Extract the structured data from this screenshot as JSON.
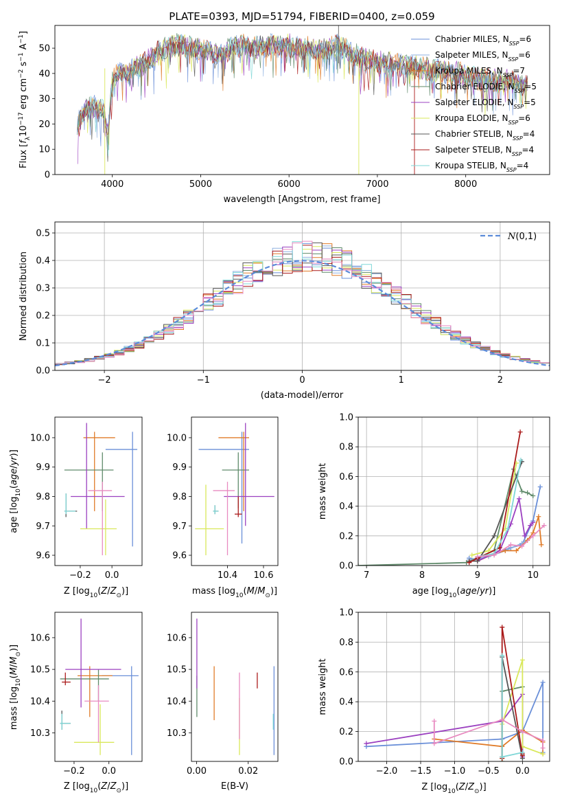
{
  "figure_title": "PLATE=0393, MJD=51794, FIBERID=0400, z=0.059",
  "colors": {
    "Chabrier MILES": "#6a8fd8",
    "Salpeter MILES": "#8fb1e0",
    "Kroupa MILES": "#e07b28",
    "Chabrier ELODIE": "#5f8a6a",
    "Salpeter ELODIE": "#9b40c0",
    "Kroupa ELODIE": "#d9e85a",
    "Chabrier STELIB": "#555555",
    "Salpeter STELIB": "#aa1a1a",
    "Kroupa STELIB": "#7fd7d7",
    "extra_pink": "#e88ac0",
    "gauss": "#5b8bd9"
  },
  "chart_data": [
    {
      "id": "spectrum",
      "type": "line",
      "title": "PLATE=0393, MJD=51794, FIBERID=0400, z=0.059",
      "xlabel": "wavelength [Angstrom, rest frame]",
      "ylabel": "Flux [f_λ 10^-17 erg cm^-2 s^-1 A^-1]",
      "xlim": [
        3350,
        8950
      ],
      "ylim": [
        0,
        59
      ],
      "xticks": [
        4000,
        5000,
        6000,
        7000,
        8000
      ],
      "yticks": [
        0,
        10,
        20,
        30,
        40,
        50
      ],
      "legend_position": "upper right",
      "anchors": [
        [
          3600,
          20
        ],
        [
          3700,
          26
        ],
        [
          3800,
          27
        ],
        [
          3900,
          25
        ],
        [
          3950,
          16
        ],
        [
          4000,
          38
        ],
        [
          4100,
          40
        ],
        [
          4200,
          41
        ],
        [
          4300,
          43
        ],
        [
          4400,
          45
        ],
        [
          4500,
          48
        ],
        [
          4600,
          50
        ],
        [
          4700,
          51
        ],
        [
          4800,
          51
        ],
        [
          4900,
          50
        ],
        [
          5000,
          49
        ],
        [
          5100,
          49
        ],
        [
          5200,
          47
        ],
        [
          5300,
          49
        ],
        [
          5400,
          51
        ],
        [
          5500,
          51
        ],
        [
          5600,
          50
        ],
        [
          5800,
          51
        ],
        [
          6000,
          51
        ],
        [
          6200,
          50
        ],
        [
          6400,
          49
        ],
        [
          6563,
          51
        ],
        [
          6700,
          48
        ],
        [
          6900,
          45
        ],
        [
          7100,
          44
        ],
        [
          7300,
          43
        ],
        [
          7500,
          42
        ],
        [
          7700,
          41
        ],
        [
          7900,
          40
        ],
        [
          8100,
          38
        ],
        [
          8300,
          37
        ],
        [
          8500,
          37
        ],
        [
          8700,
          35
        ]
      ],
      "series": [
        {
          "name": "Chabrier MILES",
          "n_ssp": "6"
        },
        {
          "name": "Salpeter MILES",
          "n_ssp": "6"
        },
        {
          "name": "Kroupa MILES",
          "n_ssp": "7"
        },
        {
          "name": "Chabrier ELODIE",
          "n_ssp": "5"
        },
        {
          "name": "Salpeter ELODIE",
          "n_ssp": "5"
        },
        {
          "name": "Kroupa ELODIE",
          "n_ssp": "6"
        },
        {
          "name": "Chabrier STELIB",
          "n_ssp": "4"
        },
        {
          "name": "Salpeter STELIB",
          "n_ssp": "4"
        },
        {
          "name": "Kroupa STELIB",
          "n_ssp": "4"
        }
      ]
    },
    {
      "id": "residuals",
      "type": "line",
      "xlabel": "(data-model)/error",
      "ylabel": "Normed distribution",
      "xlim": [
        -2.5,
        2.5
      ],
      "ylim": [
        0,
        0.54
      ],
      "xticks": [
        -2,
        -1,
        0,
        1,
        2
      ],
      "yticks": [
        0.0,
        0.1,
        0.2,
        0.3,
        0.4,
        0.5
      ],
      "grid": true,
      "legend_position": "upper right",
      "gaussian_label": "N(0,1)",
      "bin_width": 0.1
    },
    {
      "id": "age_vs_Z",
      "type": "scatter",
      "xlabel": "Z [log10(Z/Z⊙)]",
      "ylabel": "age [log10(age/yr)]",
      "xlim": [
        -0.36,
        0.19
      ],
      "ylim": [
        9.565,
        10.07
      ],
      "xticks": [
        -0.2,
        0.0
      ],
      "yticks": [
        9.6,
        9.7,
        9.8,
        9.9,
        10.0
      ],
      "points": [
        {
          "series": "Chabrier MILES",
          "x": 0.13,
          "y": 9.96,
          "xlo": -0.04,
          "xhi": 0.16,
          "ylo": 9.63,
          "yhi": 10.02
        },
        {
          "series": "Kroupa MILES",
          "x": -0.11,
          "y": 10.0,
          "xlo": -0.18,
          "xhi": 0.02,
          "ylo": 9.75,
          "yhi": 10.02
        },
        {
          "series": "Chabrier ELODIE",
          "x": -0.06,
          "y": 9.89,
          "xlo": -0.3,
          "xhi": 0.01,
          "ylo": 9.75,
          "yhi": 9.95
        },
        {
          "series": "Salpeter ELODIE",
          "x": -0.16,
          "y": 9.8,
          "xlo": -0.26,
          "xhi": 0.08,
          "ylo": 9.69,
          "yhi": 10.05
        },
        {
          "series": "Kroupa ELODIE",
          "x": -0.04,
          "y": 9.69,
          "xlo": -0.2,
          "xhi": 0.03,
          "ylo": 9.6,
          "yhi": 9.79
        },
        {
          "series": "Chabrier STELIB",
          "x": -0.29,
          "y": 9.75,
          "xlo": -0.3,
          "xhi": -0.22,
          "ylo": 9.73,
          "yhi": 9.81
        },
        {
          "series": "Kroupa STELIB",
          "x": -0.29,
          "y": 9.75,
          "xlo": -0.3,
          "xhi": -0.23,
          "ylo": 9.74,
          "yhi": 9.81
        },
        {
          "series": "extra_pink",
          "x": -0.06,
          "y": 9.82,
          "xlo": -0.15,
          "xhi": 0.0,
          "ylo": 9.6,
          "yhi": 9.85
        }
      ]
    },
    {
      "id": "age_vs_mass",
      "type": "scatter",
      "xlabel": "mass [log10(M/M⊙)]",
      "ylabel": "",
      "xlim": [
        10.2,
        10.68
      ],
      "ylim": [
        9.565,
        10.07
      ],
      "xticks": [
        10.4,
        10.6
      ],
      "yticks": [
        9.6,
        9.7,
        9.8,
        9.9,
        10.0
      ],
      "points": [
        {
          "series": "Chabrier MILES",
          "x": 10.48,
          "y": 9.96,
          "xlo": 10.24,
          "xhi": 10.52,
          "ylo": 9.64,
          "yhi": 10.02
        },
        {
          "series": "Kroupa MILES",
          "x": 10.49,
          "y": 10.0,
          "xlo": 10.35,
          "xhi": 10.52,
          "ylo": 9.75,
          "yhi": 10.02
        },
        {
          "series": "Chabrier ELODIE",
          "x": 10.46,
          "y": 9.89,
          "xlo": 10.37,
          "xhi": 10.52,
          "ylo": 9.76,
          "yhi": 9.95
        },
        {
          "series": "Salpeter ELODIE",
          "x": 10.5,
          "y": 9.8,
          "xlo": 10.38,
          "xhi": 10.66,
          "ylo": 9.7,
          "yhi": 10.05
        },
        {
          "series": "Kroupa ELODIE",
          "x": 10.28,
          "y": 9.69,
          "xlo": 10.22,
          "xhi": 10.38,
          "ylo": 9.6,
          "yhi": 9.84
        },
        {
          "series": "Chabrier STELIB",
          "x": 10.33,
          "y": 9.75,
          "xlo": 10.32,
          "xhi": 10.35,
          "ylo": 9.74,
          "yhi": 9.77
        },
        {
          "series": "Kroupa STELIB",
          "x": 10.33,
          "y": 9.75,
          "xlo": 10.32,
          "xhi": 10.35,
          "ylo": 9.74,
          "yhi": 9.77
        },
        {
          "series": "Salpeter STELIB",
          "x": 10.46,
          "y": 9.74,
          "xlo": 10.44,
          "xhi": 10.48,
          "ylo": 9.73,
          "yhi": 9.8
        },
        {
          "series": "extra_pink",
          "x": 10.4,
          "y": 9.82,
          "xlo": 10.32,
          "xhi": 10.44,
          "ylo": 9.6,
          "yhi": 9.85
        }
      ]
    },
    {
      "id": "weight_vs_age",
      "type": "line",
      "xlabel": "age [log10(age/yr)]",
      "ylabel": "mass weight",
      "xlim": [
        6.85,
        10.3
      ],
      "ylim": [
        0,
        1.0
      ],
      "xticks": [
        7,
        8,
        9,
        10
      ],
      "yticks": [
        0.0,
        0.2,
        0.4,
        0.6,
        0.8,
        1.0
      ],
      "grid": true,
      "series": [
        {
          "name": "Chabrier MILES",
          "x": [
            8.85,
            9.0,
            9.3,
            9.6,
            9.8,
            10.0,
            10.13
          ],
          "y": [
            0.05,
            0.04,
            0.08,
            0.12,
            0.14,
            0.3,
            0.53
          ]
        },
        {
          "name": "Salpeter MILES",
          "x": [
            8.85,
            9.2,
            9.5,
            9.8,
            10.0
          ],
          "y": [
            0.04,
            0.06,
            0.1,
            0.15,
            0.2
          ]
        },
        {
          "name": "Kroupa MILES",
          "x": [
            9.0,
            9.3,
            9.5,
            9.7,
            9.9,
            10.0,
            10.1,
            10.15
          ],
          "y": [
            0.03,
            0.08,
            0.1,
            0.1,
            0.17,
            0.22,
            0.33,
            0.14
          ]
        },
        {
          "name": "Chabrier ELODIE",
          "x": [
            6.85,
            8.8,
            9.3,
            9.65,
            9.8,
            9.9,
            10.0
          ],
          "y": [
            0.0,
            0.02,
            0.1,
            0.65,
            0.5,
            0.49,
            0.47
          ]
        },
        {
          "name": "Salpeter ELODIE",
          "x": [
            9.0,
            9.4,
            9.6,
            9.75,
            9.85,
            9.95,
            10.0
          ],
          "y": [
            0.03,
            0.1,
            0.28,
            0.45,
            0.2,
            0.27,
            0.29
          ]
        },
        {
          "name": "Kroupa ELODIE",
          "x": [
            8.9,
            9.2,
            9.5,
            9.7
          ],
          "y": [
            0.07,
            0.1,
            0.25,
            0.69
          ]
        },
        {
          "name": "Chabrier STELIB",
          "x": [
            8.85,
            9.0,
            9.3,
            9.8
          ],
          "y": [
            0.03,
            0.03,
            0.2,
            0.7
          ]
        },
        {
          "name": "Salpeter STELIB",
          "x": [
            8.85,
            9.0,
            9.4,
            9.77
          ],
          "y": [
            0.02,
            0.05,
            0.12,
            0.9
          ]
        },
        {
          "name": "Kroupa STELIB",
          "x": [
            9.0,
            9.3,
            9.55,
            9.78
          ],
          "y": [
            0.06,
            0.08,
            0.25,
            0.71
          ]
        },
        {
          "name": "extra_pink",
          "x": [
            9.0,
            9.3,
            9.6,
            9.8,
            10.0,
            10.2
          ],
          "y": [
            0.06,
            0.07,
            0.14,
            0.13,
            0.2,
            0.27
          ]
        }
      ]
    },
    {
      "id": "mass_vs_Z",
      "type": "scatter",
      "xlabel": "Z [log10(Z/Z⊙)]",
      "ylabel": "mass [log10(M/M⊙)]",
      "xlim": [
        -0.31,
        0.19
      ],
      "ylim": [
        10.21,
        10.68
      ],
      "xticks": [
        -0.2,
        0.0
      ],
      "yticks": [
        10.3,
        10.4,
        10.5,
        10.6
      ],
      "points": [
        {
          "series": "Chabrier MILES",
          "x": 0.13,
          "y": 10.48,
          "xlo": -0.04,
          "xhi": 0.17,
          "ylo": 10.23,
          "yhi": 10.51
        },
        {
          "series": "Kroupa MILES",
          "x": -0.11,
          "y": 10.48,
          "xlo": -0.18,
          "xhi": 0.02,
          "ylo": 10.35,
          "yhi": 10.51
        },
        {
          "series": "Chabrier ELODIE",
          "x": -0.06,
          "y": 10.47,
          "xlo": -0.28,
          "xhi": 0.0,
          "ylo": 10.4,
          "yhi": 10.5
        },
        {
          "series": "Salpeter ELODIE",
          "x": -0.16,
          "y": 10.5,
          "xlo": -0.25,
          "xhi": 0.07,
          "ylo": 10.38,
          "yhi": 10.66
        },
        {
          "series": "Kroupa ELODIE",
          "x": -0.05,
          "y": 10.27,
          "xlo": -0.2,
          "xhi": 0.03,
          "ylo": 10.23,
          "yhi": 10.39
        },
        {
          "series": "Chabrier STELIB",
          "x": -0.27,
          "y": 10.33,
          "xlo": -0.28,
          "xhi": -0.22,
          "ylo": 10.31,
          "yhi": 10.37
        },
        {
          "series": "Kroupa STELIB",
          "x": -0.27,
          "y": 10.33,
          "xlo": -0.28,
          "xhi": -0.22,
          "ylo": 10.31,
          "yhi": 10.36
        },
        {
          "series": "Salpeter STELIB",
          "x": -0.25,
          "y": 10.46,
          "xlo": -0.27,
          "xhi": -0.22,
          "ylo": 10.45,
          "yhi": 10.49
        },
        {
          "series": "extra_pink",
          "x": -0.06,
          "y": 10.4,
          "xlo": -0.14,
          "xhi": 0.0,
          "ylo": 10.27,
          "yhi": 10.45
        }
      ]
    },
    {
      "id": "mass_vs_EBV",
      "type": "scatter",
      "xlabel": "E(B-V)",
      "ylabel": "",
      "xlim": [
        -0.002,
        0.0315
      ],
      "ylim": [
        10.21,
        10.68
      ],
      "xticks": [
        0.0,
        0.02
      ],
      "yticks": [
        10.3,
        10.4,
        10.5,
        10.6
      ],
      "points": [
        {
          "series": "Chabrier MILES",
          "x": 0.03,
          "y": 10.37,
          "xlo": 0.03,
          "xhi": 0.03,
          "ylo": 10.23,
          "yhi": 10.51
        },
        {
          "series": "Kroupa MILES",
          "x": 0.0068,
          "y": 10.43,
          "xlo": 0.0068,
          "xhi": 0.0068,
          "ylo": 10.34,
          "yhi": 10.51
        },
        {
          "series": "Chabrier ELODIE",
          "x": 0.0001,
          "y": 10.42,
          "xlo": 0.0001,
          "xhi": 0.0001,
          "ylo": 10.35,
          "yhi": 10.48
        },
        {
          "series": "Salpeter ELODIE",
          "x": 0.0001,
          "y": 10.53,
          "xlo": 0.0001,
          "xhi": 0.0001,
          "ylo": 10.44,
          "yhi": 10.66
        },
        {
          "series": "Kroupa ELODIE",
          "x": 0.0166,
          "y": 10.32,
          "xlo": 0.0166,
          "xhi": 0.0166,
          "ylo": 10.23,
          "yhi": 10.41
        },
        {
          "series": "Salpeter STELIB",
          "x": 0.0235,
          "y": 10.46,
          "xlo": 0.0235,
          "xhi": 0.0235,
          "ylo": 10.44,
          "yhi": 10.49
        },
        {
          "series": "Kroupa STELIB",
          "x": 0.0297,
          "y": 10.33,
          "xlo": 0.0297,
          "xhi": 0.0297,
          "ylo": 10.31,
          "yhi": 10.36
        },
        {
          "series": "extra_pink",
          "x": 0.0166,
          "y": 10.41,
          "xlo": 0.0166,
          "xhi": 0.0166,
          "ylo": 10.28,
          "yhi": 10.49
        }
      ]
    },
    {
      "id": "weight_vs_Z",
      "type": "line",
      "xlabel": "Z [log10(Z/Z⊙)]",
      "ylabel": "mass weight",
      "xlim": [
        -2.42,
        0.4
      ],
      "ylim": [
        0,
        1.0
      ],
      "xticks": [
        -2.0,
        -1.5,
        -1.0,
        -0.5,
        0.0
      ],
      "yticks": [
        0.0,
        0.2,
        0.4,
        0.6,
        0.8,
        1.0
      ],
      "grid": true,
      "series": [
        {
          "name": "Chabrier MILES",
          "x": [
            -2.3,
            -0.3,
            0.0,
            0.3,
            0.3
          ],
          "y": [
            0.1,
            0.15,
            0.2,
            0.53,
            0.06
          ]
        },
        {
          "name": "Kroupa MILES",
          "x": [
            -1.3,
            -0.3,
            0.0,
            0.3,
            0.3
          ],
          "y": [
            0.15,
            0.1,
            0.21,
            0.13,
            0.05
          ]
        },
        {
          "name": "Chabrier ELODIE",
          "x": [
            -0.3,
            -0.3,
            0.0,
            0.0
          ],
          "y": [
            0.0,
            0.47,
            0.5,
            0.03
          ]
        },
        {
          "name": "Salpeter ELODIE",
          "x": [
            -2.3,
            -0.3,
            0.0,
            0.0
          ],
          "y": [
            0.12,
            0.27,
            0.45,
            0.03
          ]
        },
        {
          "name": "Kroupa ELODIE",
          "x": [
            -0.3,
            -0.3,
            0.0,
            0.0,
            0.3
          ],
          "y": [
            0.02,
            0.25,
            0.68,
            0.1,
            0.05
          ]
        },
        {
          "name": "Chabrier STELIB",
          "x": [
            -0.3,
            -0.3,
            0.0
          ],
          "y": [
            0.03,
            0.7,
            0.02
          ]
        },
        {
          "name": "Salpeter STELIB",
          "x": [
            -0.3,
            -0.3,
            0.0,
            0.0
          ],
          "y": [
            0.02,
            0.9,
            0.04,
            0.05
          ]
        },
        {
          "name": "Kroupa STELIB",
          "x": [
            -0.3,
            -0.3,
            0.0
          ],
          "y": [
            0.71,
            0.03,
            0.06
          ]
        },
        {
          "name": "extra_pink",
          "x": [
            -1.3,
            -1.3,
            -0.3,
            0.0,
            0.3,
            0.3
          ],
          "y": [
            0.27,
            0.12,
            0.28,
            0.2,
            0.14,
            0.09
          ]
        }
      ]
    }
  ]
}
